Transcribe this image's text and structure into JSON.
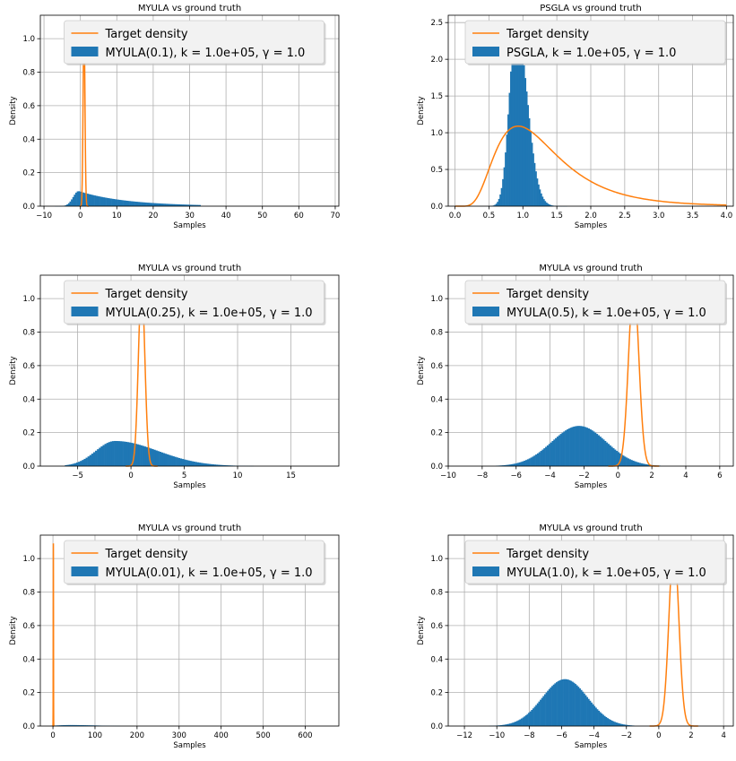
{
  "colors": {
    "hist": "#1f77b4",
    "line": "#ff7f0e",
    "grid": "#b0b0b0",
    "legend_bg": "#f2f2f2",
    "legend_border": "#cccccc"
  },
  "chart_data": [
    {
      "type": "histogram",
      "title": "MYULA vs ground truth",
      "xlabel": "Samples",
      "ylabel": "Density",
      "xlim": [
        -11,
        71
      ],
      "ylim": [
        0,
        1.14
      ],
      "xticks": [
        -10,
        0,
        10,
        20,
        30,
        40,
        50,
        60,
        70
      ],
      "yticks": [
        0.0,
        0.2,
        0.4,
        0.6,
        0.8,
        1.0
      ],
      "legend": [
        "Target density",
        "MYULA(0.1), k = 1.0e+05, γ = 1.0"
      ],
      "legend_placement": "top-center",
      "grid": true,
      "hist": {
        "range": [
          -7,
          33
        ],
        "bins": 100,
        "peak": 0.09,
        "mode": -0.5,
        "sigma_left": 1.5,
        "decay": 13
      },
      "target": {
        "mode": 1.0,
        "sigma": 0.25,
        "peak": 1.09
      }
    },
    {
      "type": "histogram",
      "title": "PSGLA vs ground truth",
      "xlabel": "Samples",
      "ylabel": "Density",
      "xlim": [
        -0.1,
        4.1
      ],
      "ylim": [
        0,
        2.6
      ],
      "xticks": [
        0.0,
        0.5,
        1.0,
        1.5,
        2.0,
        2.5,
        3.0,
        3.5,
        4.0
      ],
      "yticks": [
        0.0,
        0.5,
        1.0,
        1.5,
        2.0,
        2.5
      ],
      "legend": [
        "Target density",
        "PSGLA, k = 1.0e+05, γ = 1.0"
      ],
      "legend_placement": "top-center",
      "grid": true,
      "hist": {
        "range": [
          0.48,
          1.65
        ],
        "bins": 60,
        "peak": 2.5,
        "mode": 0.9,
        "sigma_left": 0.1,
        "sigma_right": 0.16
      },
      "target": {
        "mode": 0.93,
        "sigma": 0.33,
        "peak": 1.09,
        "skew": 0.5
      }
    },
    {
      "type": "histogram",
      "title": "MYULA vs ground truth",
      "xlabel": "Samples",
      "ylabel": "Density",
      "xlim": [
        -8.5,
        19.5
      ],
      "ylim": [
        0,
        1.14
      ],
      "xticks": [
        -5,
        0,
        5,
        10,
        15
      ],
      "yticks": [
        0.0,
        0.2,
        0.4,
        0.6,
        0.8,
        1.0
      ],
      "legend": [
        "Target density",
        "MYULA(0.25), k = 1.0e+05, γ = 1.0"
      ],
      "legend_placement": "top-center",
      "grid": true,
      "hist": {
        "range": [
          -6.2,
          11.5
        ],
        "bins": 100,
        "peak": 0.15,
        "mode": -1.5,
        "sigma_left": 1.8,
        "sigma_right": 4.0
      },
      "target": {
        "mode": 1.0,
        "sigma": 0.3,
        "peak": 1.09
      }
    },
    {
      "type": "histogram",
      "title": "MYULA vs ground truth",
      "xlabel": "Samples",
      "ylabel": "Density",
      "xlim": [
        -10,
        6.8
      ],
      "ylim": [
        0,
        1.14
      ],
      "xticks": [
        -10,
        -8,
        -6,
        -4,
        -2,
        0,
        2,
        4,
        6
      ],
      "yticks": [
        0.0,
        0.2,
        0.4,
        0.6,
        0.8,
        1.0
      ],
      "legend": [
        "Target density",
        "MYULA(0.5), k = 1.0e+05, γ = 1.0"
      ],
      "legend_placement": "top-center",
      "grid": true,
      "hist": {
        "range": [
          -7.2,
          2.5
        ],
        "bins": 100,
        "peak": 0.24,
        "mode": -2.3,
        "sigma_left": 1.6,
        "sigma_right": 1.6
      },
      "target": {
        "mode": 0.93,
        "sigma": 0.3,
        "peak": 1.09
      }
    },
    {
      "type": "histogram",
      "title": "MYULA vs ground truth",
      "xlabel": "Samples",
      "ylabel": "Density",
      "xlim": [
        -30,
        680
      ],
      "ylim": [
        0,
        1.14
      ],
      "xticks": [
        0,
        100,
        200,
        300,
        400,
        500,
        600
      ],
      "yticks": [
        0.0,
        0.2,
        0.4,
        0.6,
        0.8,
        1.0
      ],
      "legend": [
        "Target density",
        "MYULA(0.01), k = 1.0e+05, γ = 1.0"
      ],
      "legend_placement": "top-center",
      "grid": true,
      "hist": {
        "range": [
          -5,
          160
        ],
        "bins": 40,
        "peak": 0.006,
        "mode": 40,
        "sigma_left": 30,
        "sigma_right": 60
      },
      "target": {
        "mode": 1.0,
        "sigma": 0.3,
        "peak": 1.09
      }
    },
    {
      "type": "histogram",
      "title": "MYULA vs ground truth",
      "xlabel": "Samples",
      "ylabel": "Density",
      "xlim": [
        -13,
        4.6
      ],
      "ylim": [
        0,
        1.14
      ],
      "xticks": [
        -12,
        -10,
        -8,
        -6,
        -4,
        -2,
        0,
        2,
        4
      ],
      "yticks": [
        0.0,
        0.2,
        0.4,
        0.6,
        0.8,
        1.0
      ],
      "legend": [
        "Target density",
        "MYULA(1.0), k = 1.0e+05, γ = 1.0"
      ],
      "legend_placement": "top-center",
      "grid": true,
      "hist": {
        "range": [
          -10.5,
          -1.5
        ],
        "bins": 100,
        "peak": 0.28,
        "mode": -5.8,
        "sigma_left": 1.4,
        "sigma_right": 1.4
      },
      "target": {
        "mode": 0.93,
        "sigma": 0.3,
        "peak": 1.09
      }
    }
  ]
}
